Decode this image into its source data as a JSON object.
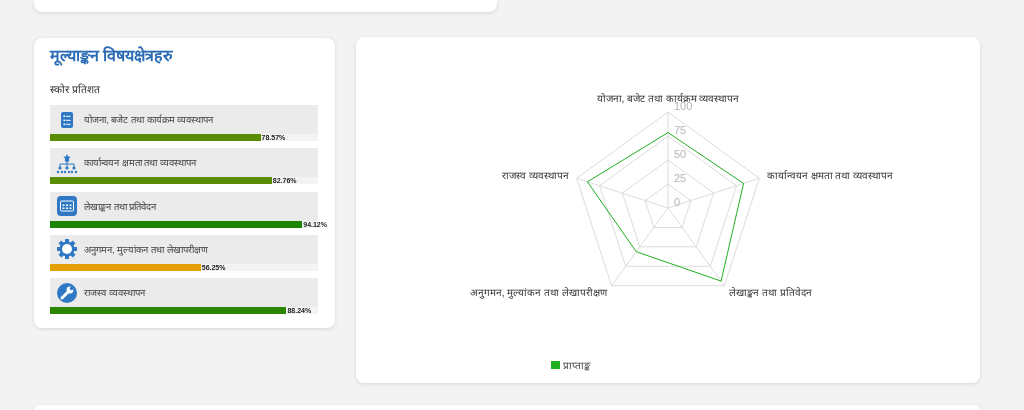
{
  "chart_data": [
    {
      "type": "bar",
      "orientation": "horizontal",
      "title": "मूल्याङ्कन विषयक्षेत्रहरु",
      "subtitle": "स्कोर प्रतिशत",
      "categories": [
        "योजना, बजेट तथा कार्यक्रम व्यवस्थापन",
        "कार्यान्वयन क्षमता तथा व्यवस्थापन",
        "लेखाङ्कन तथा प्रतिवेदन",
        "अनुगमन, मुल्यांकन तथा लेखापरीक्षण",
        "राजस्व व्यवस्थापन"
      ],
      "values": [
        78.57,
        82.76,
        94.12,
        56.25,
        88.24
      ],
      "colors": [
        "#5a8c00",
        "#5a8c00",
        "#1d8400",
        "#e4a000",
        "#288600"
      ],
      "value_labels": [
        "78.57%",
        "82.76%",
        "94.12%",
        "56.25%",
        "88.24%"
      ],
      "xlim": [
        0,
        100
      ],
      "tick_labels": "y"
    },
    {
      "type": "radar",
      "categories": [
        "योजना, बजेट तथा कार्यक्रम व्यवस्थापन",
        "कार्यान्वयन क्षमता तथा व्यवस्थापन",
        "लेखाङ्कन तथा प्रतिवेदन",
        "अनुगमन, मुल्यांकन तथा लेखापरीक्षण",
        "राजस्व व्यवस्थापन"
      ],
      "series": [
        {
          "name": "प्राप्ताङ्क",
          "color": "#22b022",
          "values": [
            78.57,
            82.76,
            94.12,
            56.25,
            88.24
          ]
        }
      ],
      "ylim": [
        0,
        100
      ],
      "yticks": [
        0,
        25,
        50,
        75,
        100
      ],
      "grid": true,
      "legend": "bottom"
    }
  ]
}
